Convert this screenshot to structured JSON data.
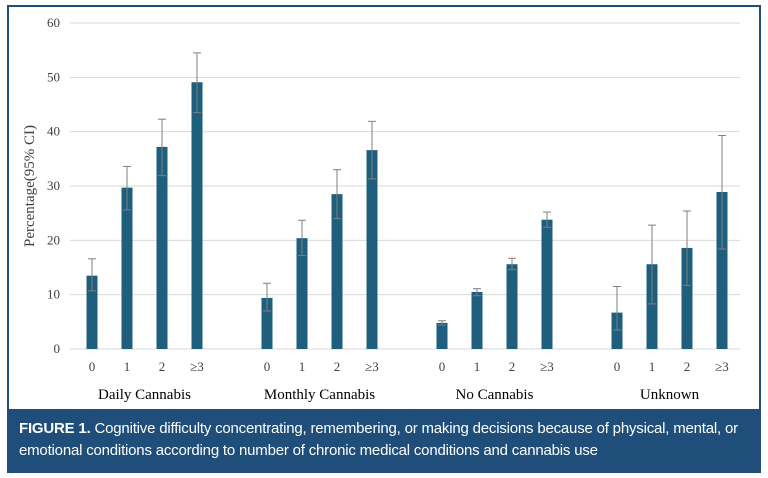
{
  "chart_data": {
    "type": "bar",
    "ylabel": "Percentage(95% CI)",
    "ylim": [
      0,
      60
    ],
    "yticks": [
      0,
      10,
      20,
      30,
      40,
      50,
      60
    ],
    "grid": true,
    "bar_color": "#1e5f7e",
    "error_bar_color": "#7f7f7f",
    "groups": [
      {
        "name": "Daily Cannabis",
        "categories": [
          "0",
          "1",
          "2",
          "≥3"
        ],
        "values": [
          13.5,
          29.7,
          37.2,
          49.1
        ],
        "ci_low": [
          10.7,
          25.6,
          31.9,
          43.5
        ],
        "ci_high": [
          16.6,
          33.6,
          42.3,
          54.5
        ]
      },
      {
        "name": "Monthly Cannabis",
        "categories": [
          "0",
          "1",
          "2",
          "≥3"
        ],
        "values": [
          9.4,
          20.4,
          28.5,
          36.6
        ],
        "ci_low": [
          7.0,
          17.2,
          24.0,
          31.3
        ],
        "ci_high": [
          12.1,
          23.7,
          33.0,
          41.9
        ]
      },
      {
        "name": "No Cannabis",
        "categories": [
          "0",
          "1",
          "2",
          "≥3"
        ],
        "values": [
          4.8,
          10.5,
          15.6,
          23.8
        ],
        "ci_low": [
          4.4,
          9.8,
          14.6,
          22.4
        ],
        "ci_high": [
          5.2,
          11.1,
          16.7,
          25.2
        ]
      },
      {
        "name": "Unknown",
        "categories": [
          "0",
          "1",
          "2",
          "≥3"
        ],
        "values": [
          6.7,
          15.6,
          18.6,
          28.9
        ],
        "ci_low": [
          3.5,
          8.3,
          11.7,
          18.4
        ],
        "ci_high": [
          11.5,
          22.8,
          25.4,
          39.3
        ]
      }
    ]
  },
  "caption": {
    "label": "FIGURE 1.",
    "text": "Cognitive difficulty concentrating, remembering, or making decisions because of physical, mental, or emotional conditions according to number of chronic medical conditions and cannabis use"
  },
  "colors": {
    "frame": "#1e4e79",
    "caption_bg": "#1e4e79",
    "grid": "#d9d9d9"
  }
}
